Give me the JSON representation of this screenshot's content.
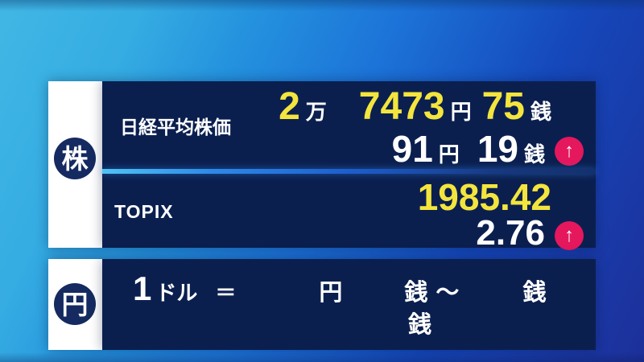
{
  "colors": {
    "panel_navy": "#0b1f4f",
    "tab_circle_navy": "#142a60",
    "accent_yellow": "#f3e53d",
    "arrow_pink": "#e5175d"
  },
  "icons": {
    "up_arrow": "↑"
  },
  "stock_section": {
    "tab_label": "株",
    "nikkei": {
      "label": "日経平均株価",
      "price": {
        "man_value": "2",
        "man_unit": "万",
        "yen_value": "7473",
        "yen_unit": "円",
        "sen_value": "75",
        "sen_unit": "銭"
      },
      "change": {
        "yen_value": "91",
        "yen_unit": "円",
        "sen_value": "19",
        "sen_unit": "銭",
        "direction": "up"
      }
    },
    "topix": {
      "label": "TOPIX",
      "value": "1985.42",
      "change": "2.76",
      "direction": "up"
    }
  },
  "currency_section": {
    "tab_label": "円",
    "rate_row1": {
      "amount": "1",
      "unit": "ドル",
      "equals": "＝",
      "yen_value": "",
      "yen_unit": "円",
      "sen_low": "",
      "sen_unit_low": "銭",
      "tilde": "～",
      "sen_high": "",
      "sen_unit_high": "銭"
    },
    "rate_row2": {
      "sen_value": "",
      "sen_unit": "銭"
    }
  }
}
